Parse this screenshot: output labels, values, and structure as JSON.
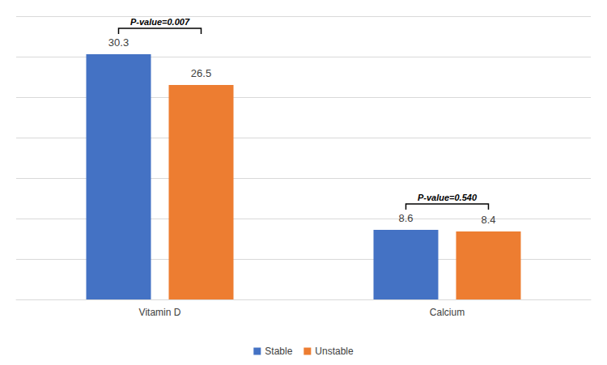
{
  "chart_data": {
    "type": "bar",
    "categories": [
      "Vitamin D",
      "Calcium"
    ],
    "series": [
      {
        "name": "Stable",
        "color": "#4472c4",
        "values": [
          30.3,
          8.6
        ]
      },
      {
        "name": "Unstable",
        "color": "#ed7d31",
        "values": [
          26.5,
          8.4
        ]
      }
    ],
    "ylim": [
      0,
      35
    ],
    "yticks": [
      0,
      5,
      10,
      15,
      20,
      25,
      30,
      35
    ],
    "grid": true,
    "legend": "bottom",
    "data_labels": true,
    "tick_labels": "x",
    "annotations": [
      {
        "text": "P-value=0.007",
        "category": "Vitamin D"
      },
      {
        "text": "P-value=0.540",
        "category": "Calcium"
      }
    ]
  }
}
